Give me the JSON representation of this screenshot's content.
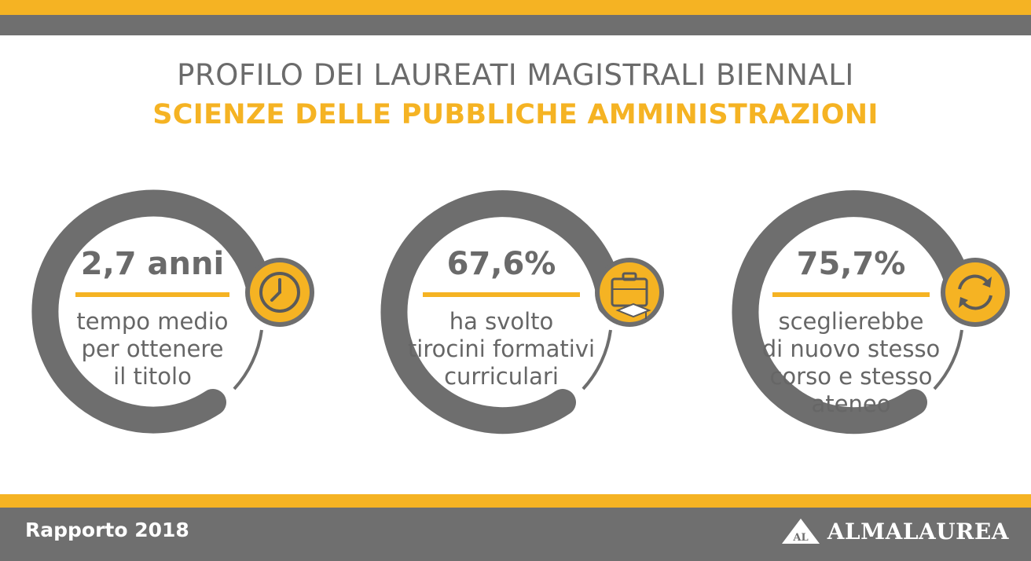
{
  "header": {
    "title": "PROFILO DEI LAUREATI MAGISTRALI BIENNALI",
    "subtitle": "SCIENZE DELLE PUBBLICHE AMMINISTRAZIONI"
  },
  "stats": [
    {
      "value": "2,7 anni",
      "description": "tempo medio\nper ottenere\nil titolo",
      "icon": "clock-icon"
    },
    {
      "value": "67,6%",
      "description": "ha svolto\ntirocini formativi\ncurriculari",
      "icon": "briefcase-graduation-icon"
    },
    {
      "value": "75,7%",
      "description": "sceglierebbe\ndi nuovo stesso\ncorso e stesso\nateneo",
      "icon": "refresh-icon"
    }
  ],
  "footer": {
    "report": "Rapporto 2018",
    "logo_badge": "AL",
    "logo_text": "ALMALAUREA"
  },
  "colors": {
    "accent": "#f5b323",
    "gray": "#6f6f6f",
    "ring": "#6e6e6e"
  }
}
